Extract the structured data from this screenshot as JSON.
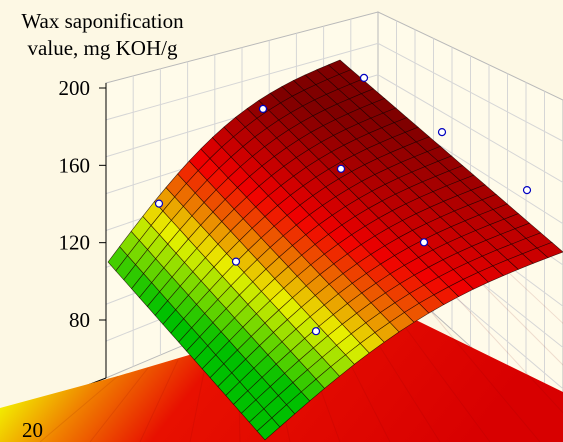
{
  "chart_data": {
    "type": "surface",
    "zlabel": [
      "Wax saponification",
      "value, mg KOH/g"
    ],
    "zticks": [
      "200",
      "160",
      "120",
      "80"
    ],
    "xticks": [
      "20"
    ],
    "grid": true,
    "colormap": [
      "#00c000",
      "#e8f000",
      "#f00000",
      "#800000"
    ],
    "points": [
      {
        "z": 199
      },
      {
        "z": 183
      },
      {
        "z": 171
      },
      {
        "z": 152
      },
      {
        "z": 141
      },
      {
        "z": 134
      },
      {
        "z": 114
      },
      {
        "z": 104
      },
      {
        "z": 68
      }
    ]
  }
}
